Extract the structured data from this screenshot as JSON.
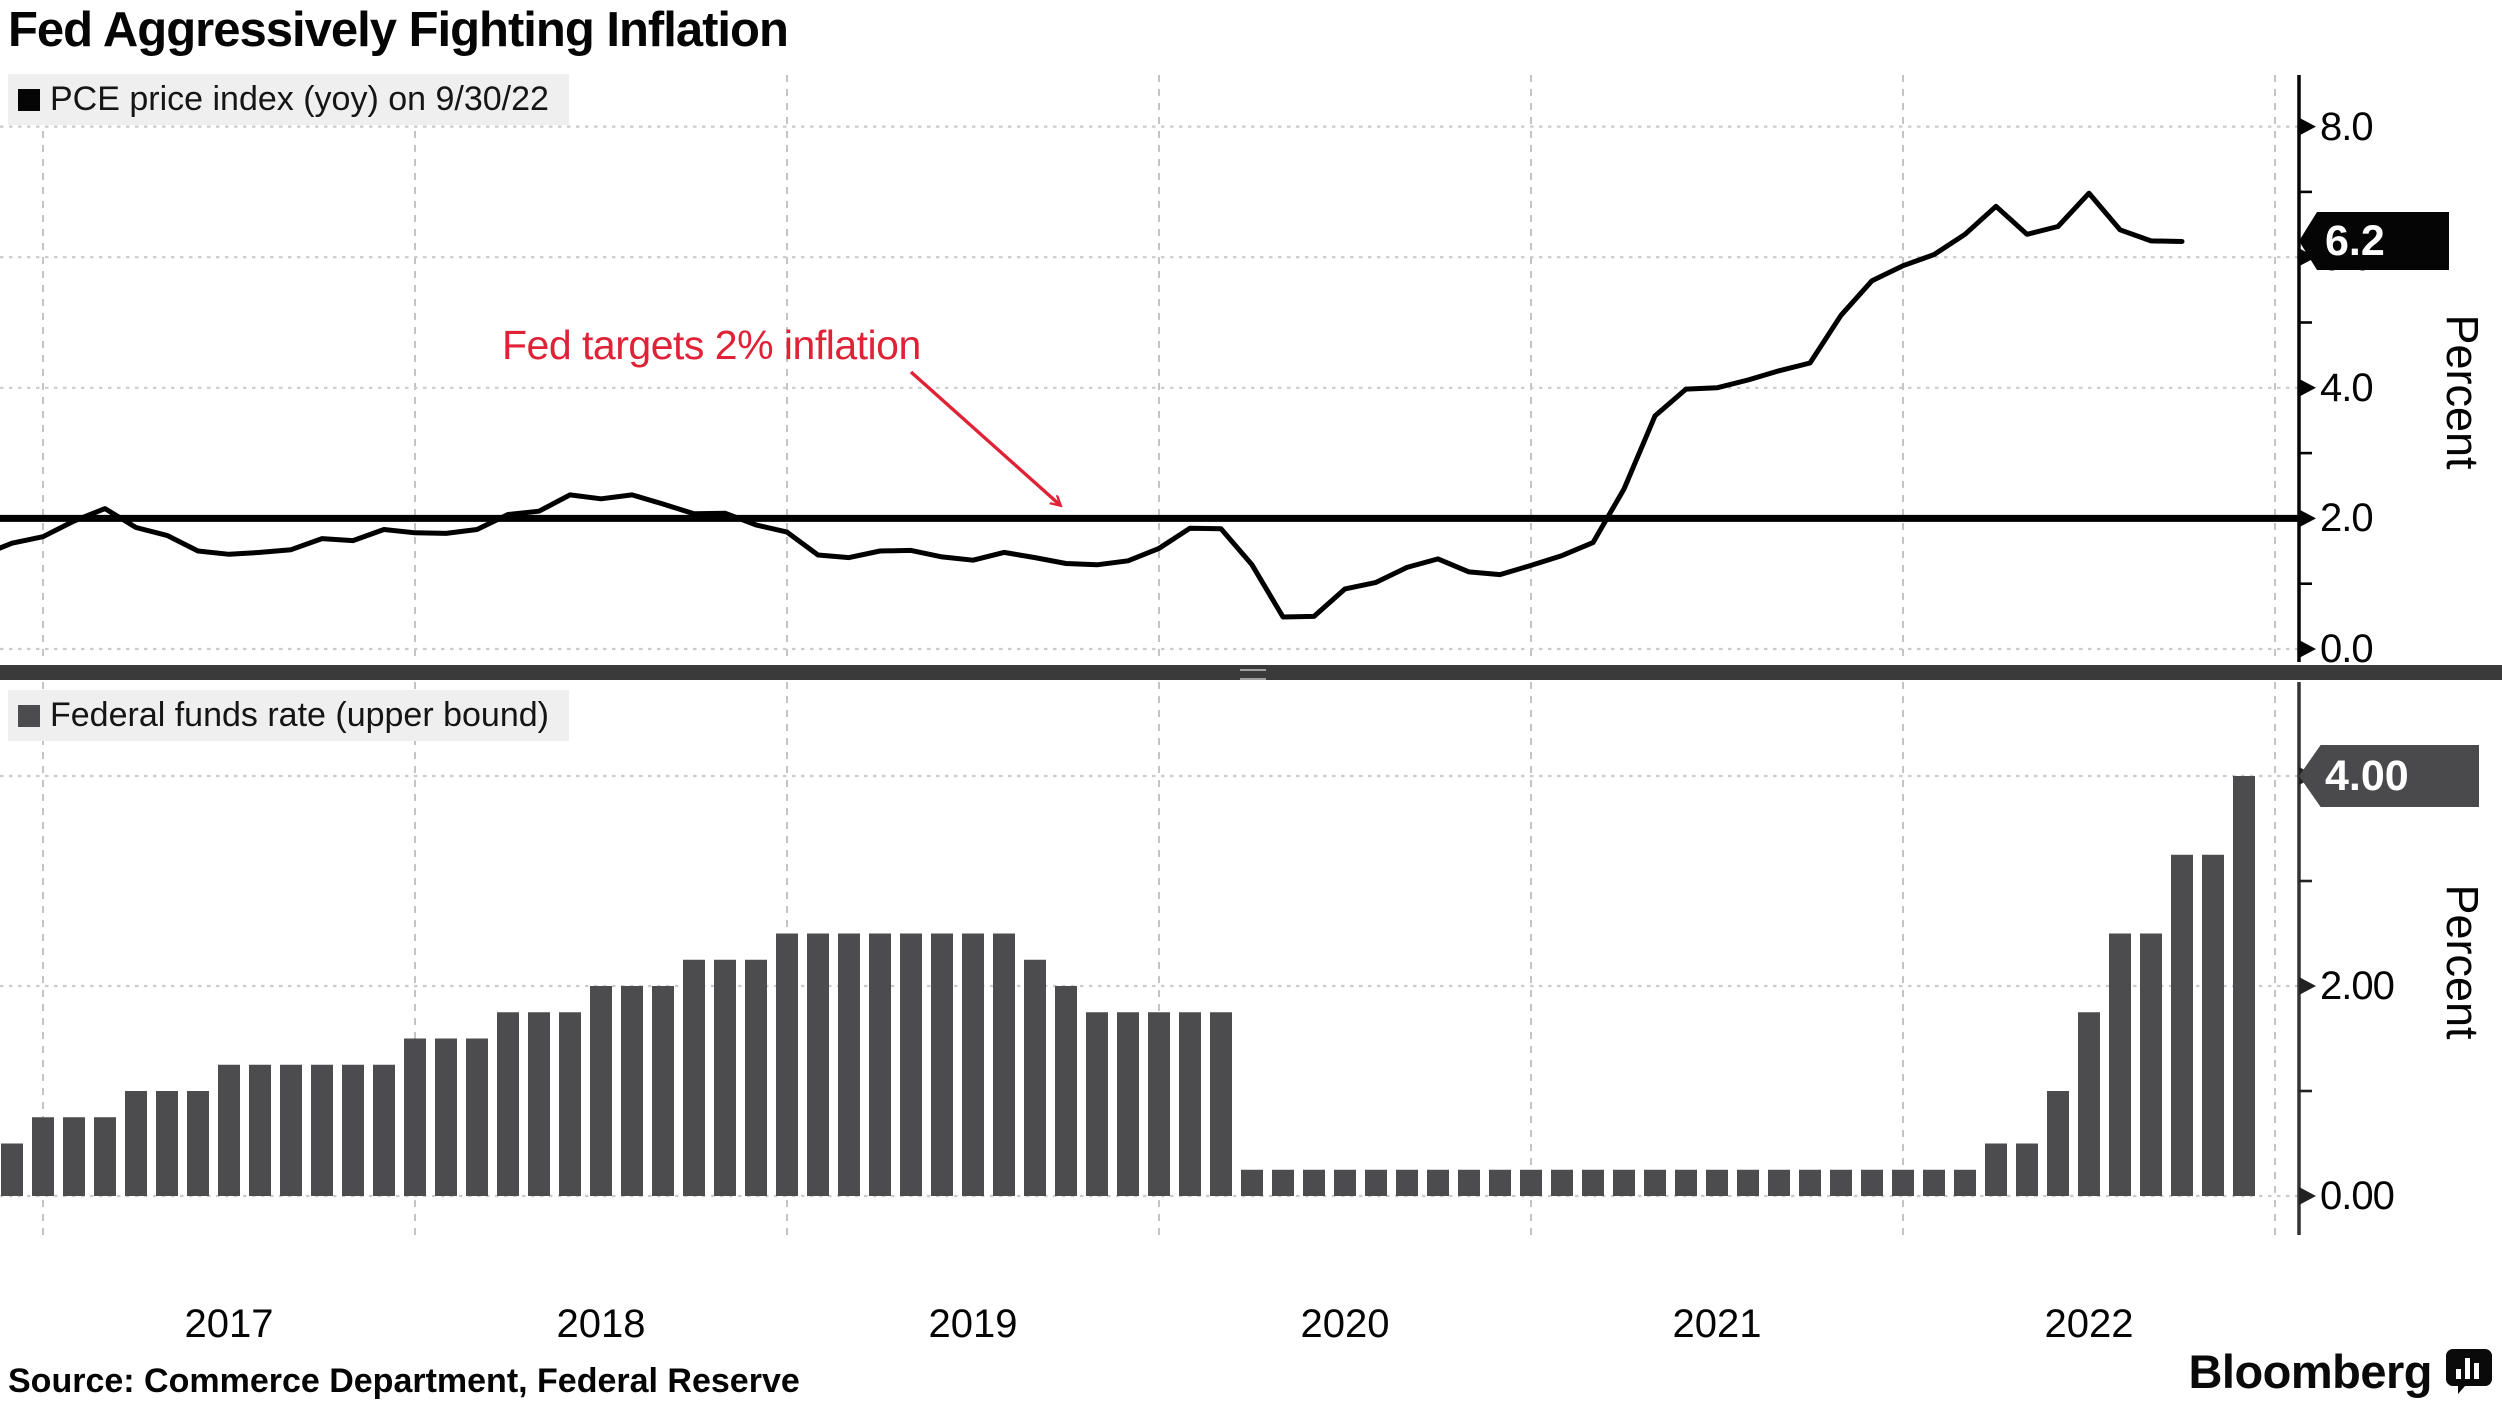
{
  "title": "Fed Aggressively Fighting Inflation",
  "top_chart": {
    "legend": "PCE price index (yoy) on 9/30/22",
    "annotation": "Fed targets 2% inflation",
    "last_value_label": "6.2",
    "axis_label": "Percent",
    "ticks": [
      "8.0",
      "6.0",
      "4.0",
      "2.0",
      "0.0"
    ]
  },
  "bottom_chart": {
    "legend": "Federal funds rate (upper bound)",
    "last_value_label": "4.00",
    "axis_label": "Percent",
    "ticks": [
      "4.00",
      "2.00",
      "0.00"
    ]
  },
  "x_axis": {
    "years": [
      "2017",
      "2018",
      "2019",
      "2020",
      "2021",
      "2022"
    ]
  },
  "source": "Source: Commerce Department, Federal Reserve",
  "brand": "Bloomberg",
  "colors": {
    "line": "#000000",
    "bar": "#4c4c4e",
    "target_line": "#000000",
    "annotation_red": "#e02237",
    "legend_bg": "#efefef",
    "badge_top_bg": "#050505",
    "badge_bottom_bg": "#4a4a4c",
    "grid": "#c4c4c4",
    "divider": "#3a3a3a"
  },
  "chart_data": [
    {
      "type": "line",
      "name": "PCE price index (yoy)",
      "unit": "percent",
      "frequency": "monthly",
      "start": "2016-10",
      "end": "2022-09",
      "as_of": "9/30/22",
      "last_label": "6.2",
      "ylabel": "Percent",
      "yticks": [
        0.0,
        2.0,
        4.0,
        6.0,
        8.0
      ],
      "ylim": [
        -0.2,
        8.8
      ],
      "reference_line": {
        "value": 2.0,
        "label": "Fed targets 2% inflation"
      },
      "values": [
        1.43,
        1.62,
        1.72,
        1.96,
        2.15,
        1.86,
        1.74,
        1.5,
        1.45,
        1.48,
        1.52,
        1.69,
        1.66,
        1.83,
        1.78,
        1.77,
        1.83,
        2.06,
        2.11,
        2.36,
        2.3,
        2.36,
        2.22,
        2.07,
        2.08,
        1.9,
        1.79,
        1.44,
        1.4,
        1.5,
        1.51,
        1.41,
        1.36,
        1.48,
        1.4,
        1.31,
        1.29,
        1.35,
        1.54,
        1.85,
        1.84,
        1.29,
        0.49,
        0.5,
        0.92,
        1.02,
        1.25,
        1.38,
        1.18,
        1.14,
        1.28,
        1.43,
        1.63,
        2.45,
        3.57,
        3.98,
        4.0,
        4.12,
        4.26,
        4.38,
        5.11,
        5.64,
        5.87,
        6.04,
        6.35,
        6.78,
        6.35,
        6.47,
        6.98,
        6.42,
        6.25,
        6.24
      ]
    },
    {
      "type": "bar",
      "name": "Federal funds rate (upper bound)",
      "unit": "percent",
      "frequency": "monthly",
      "start": "2016-11",
      "end": "2022-11",
      "last_label": "4.00",
      "ylabel": "Percent",
      "yticks": [
        0.0,
        2.0,
        4.0
      ],
      "ylim": [
        -0.4,
        4.9
      ],
      "values": [
        0.5,
        0.75,
        0.75,
        0.75,
        1.0,
        1.0,
        1.0,
        1.25,
        1.25,
        1.25,
        1.25,
        1.25,
        1.25,
        1.5,
        1.5,
        1.5,
        1.75,
        1.75,
        1.75,
        2.0,
        2.0,
        2.0,
        2.25,
        2.25,
        2.25,
        2.5,
        2.5,
        2.5,
        2.5,
        2.5,
        2.5,
        2.5,
        2.5,
        2.25,
        2.0,
        1.75,
        1.75,
        1.75,
        1.75,
        1.75,
        0.25,
        0.25,
        0.25,
        0.25,
        0.25,
        0.25,
        0.25,
        0.25,
        0.25,
        0.25,
        0.25,
        0.25,
        0.25,
        0.25,
        0.25,
        0.25,
        0.25,
        0.25,
        0.25,
        0.25,
        0.25,
        0.25,
        0.25,
        0.25,
        0.5,
        0.5,
        1.0,
        1.75,
        2.5,
        2.5,
        3.25,
        3.25,
        4.0
      ]
    }
  ]
}
